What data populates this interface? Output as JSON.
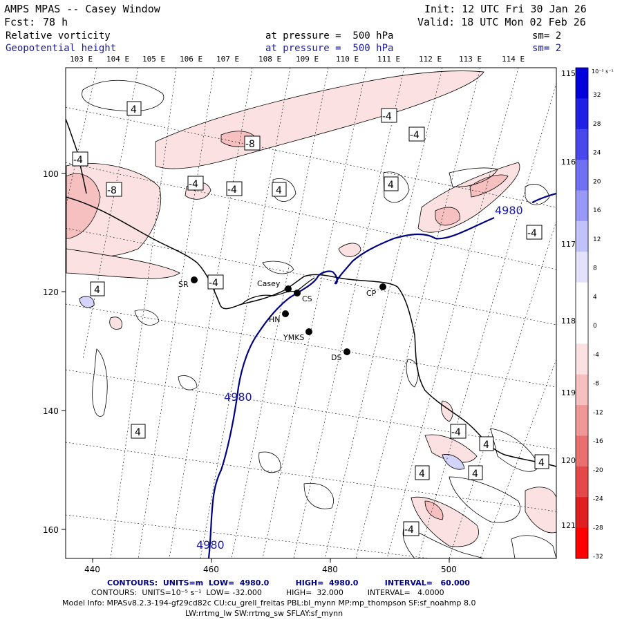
{
  "header": {
    "title": "AMPS MPAS -- Casey Window",
    "init": "Init: 12 UTC Fri 30 Jan 26",
    "fcst_label": "Fcst:",
    "fcst_value": "78 h",
    "valid": "Valid: 18 UTC Mon 02 Feb 26",
    "field1_name": "Relative vorticity",
    "field1_level": "at pressure =  500 hPa",
    "field1_sm": "sm= 2",
    "field2_name": "Geopotential height",
    "field2_level": "at pressure =  500 hPa",
    "field2_sm": "sm= 2"
  },
  "map": {
    "top_lon_labels": [
      "103 E",
      "104 E",
      "105 E",
      "106 E",
      "107 E",
      "108 E",
      "109 E",
      "110 E",
      "111 E",
      "112 E",
      "113 E",
      "114 E"
    ],
    "right_lon_labels": [
      "115 E",
      "116 E",
      "117 E",
      "118 E",
      "119 E",
      "120 E",
      "121 E"
    ],
    "x_ticks": [
      "440",
      "460",
      "480",
      "500"
    ],
    "y_ticks": [
      "100",
      "120",
      "140",
      "160"
    ],
    "stations": [
      "SR",
      "Casey",
      "CS",
      "CP",
      "HN",
      "YMKS",
      "DS"
    ],
    "contour_labels": [
      "4",
      "-4",
      "-8",
      "-8",
      "-4",
      "-4",
      "4",
      "4",
      "-4",
      "-4",
      "-4",
      "-4",
      "4",
      "-4",
      "4",
      "4",
      "4",
      "-4",
      "4",
      "4",
      "-4",
      "4"
    ],
    "height_labels": [
      "4980",
      "4980",
      "4980"
    ]
  },
  "colorbar": {
    "unit": "10⁻⁵ s⁻¹",
    "labels": [
      "32",
      "28",
      "24",
      "20",
      "16",
      "12",
      "8",
      "4",
      "0",
      "-4",
      "-8",
      "-12",
      "-16",
      "-20",
      "-24",
      "-28",
      "-32"
    ],
    "colors": [
      "#0000dd",
      "#2121e6",
      "#4848ec",
      "#7070f2",
      "#9898f6",
      "#c2c2fa",
      "#e2e2fc",
      "#ffffff",
      "#ffffff",
      "#fbe1e1",
      "#f6c0c0",
      "#f09898",
      "#ea7070",
      "#e44848",
      "#e02020",
      "#ff0000"
    ]
  },
  "footer": {
    "line1": "CONTOURS:  UNITS=m  LOW=  4980.0          HIGH=  4980.0          INTERVAL=   60.000",
    "line2": "CONTOURS:  UNITS=10⁻⁵ s⁻¹  LOW= -32.000          HIGH=  32.000          INTERVAL=   4.0000",
    "line3": "Model Info: MPASv8.2.3-194-gf29cd82c CU:cu_grell_freitas PBL:bl_mynn MP:mp_thompson SF:sf_noahmp 8.0",
    "line4": "LW:rrtmg_lw SW:rrtmg_sw SFLAY:sf_mynn"
  }
}
